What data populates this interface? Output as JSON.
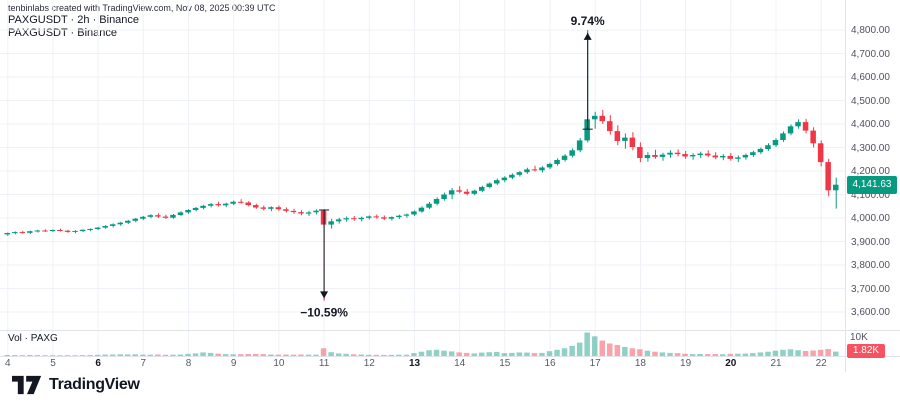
{
  "header": {
    "attribution": "tenbinlabs created with TradingView.com, Nov 08, 2025 00:39 UTC",
    "legend_line1": "PAXGUSDT · 2h · Binance",
    "legend_line2": "PAXGUSDT · Binance"
  },
  "price_axis": {
    "labels": [
      {
        "label": "4,800.00",
        "value": 4800
      },
      {
        "label": "4,700.00",
        "value": 4700
      },
      {
        "label": "4,600.00",
        "value": 4600
      },
      {
        "label": "4,500.00",
        "value": 4500
      },
      {
        "label": "4,400.00",
        "value": 4400
      },
      {
        "label": "4,300.00",
        "value": 4300
      },
      {
        "label": "4,200.00",
        "value": 4200
      },
      {
        "label": "4,100.00",
        "value": 4100
      },
      {
        "label": "4,000.00",
        "value": 4000
      },
      {
        "label": "3,900.00",
        "value": 3900
      },
      {
        "label": "3,800.00",
        "value": 3800
      },
      {
        "label": "3,700.00",
        "value": 3700
      },
      {
        "label": "3,600.00",
        "value": 3600
      }
    ],
    "last_price_label": "4,141.63",
    "last_price_value": 4141.63
  },
  "volume": {
    "legend": "Vol · PAXG",
    "axis_max_label": "10K",
    "last_volume_label": "1.82K"
  },
  "footer": {
    "logo_text": "TradingView"
  },
  "chart_data": {
    "type": "candlestick",
    "symbol": "PAXGUSDT",
    "interval": "2h",
    "exchange": "Binance",
    "price_range": {
      "min": 3600,
      "max": 4800,
      "step": 100
    },
    "volume_axis_max": 10000,
    "last_price": 4141.63,
    "last_volume": 1820,
    "candles_per_day": 6,
    "candle_format": [
      "open",
      "high",
      "low",
      "close",
      "volume"
    ],
    "day_ticks": [
      {
        "label": "4",
        "bold": false
      },
      {
        "label": "5",
        "bold": false
      },
      {
        "label": "6",
        "bold": true
      },
      {
        "label": "7",
        "bold": false
      },
      {
        "label": "8",
        "bold": false
      },
      {
        "label": "9",
        "bold": false
      },
      {
        "label": "10",
        "bold": false
      },
      {
        "label": "11",
        "bold": false
      },
      {
        "label": "12",
        "bold": false
      },
      {
        "label": "13",
        "bold": true
      },
      {
        "label": "14",
        "bold": false
      },
      {
        "label": "15",
        "bold": false
      },
      {
        "label": "16",
        "bold": false
      },
      {
        "label": "17",
        "bold": false
      },
      {
        "label": "18",
        "bold": false
      },
      {
        "label": "19",
        "bold": false
      },
      {
        "label": "20",
        "bold": true
      },
      {
        "label": "21",
        "bold": false
      },
      {
        "label": "22",
        "bold": false
      }
    ],
    "annotations": [
      {
        "label": "9.74%",
        "candle_index": 77,
        "price_from": 4378,
        "price_to": 4788,
        "direction": "up"
      },
      {
        "label": "−10.59%",
        "candle_index": 42,
        "price_from": 4034,
        "price_to": 3658,
        "direction": "down"
      }
    ],
    "colors": {
      "up": "#089981",
      "down": "#f23645",
      "vol_up": "rgba(8,153,129,0.45)",
      "vol_down": "rgba(242,54,69,0.45)",
      "grid": "#eef1f6",
      "annotation": "#131722",
      "price_badge": "#089981",
      "volume_badge": "#f7525f"
    },
    "candles": [
      [
        3930,
        3938,
        3924,
        3936,
        420
      ],
      [
        3936,
        3943,
        3930,
        3940,
        380
      ],
      [
        3940,
        3945,
        3933,
        3937,
        350
      ],
      [
        3937,
        3946,
        3932,
        3944,
        400
      ],
      [
        3944,
        3950,
        3938,
        3947,
        360
      ],
      [
        3947,
        3952,
        3941,
        3945,
        300
      ],
      [
        3945,
        3951,
        3940,
        3949,
        320
      ],
      [
        3949,
        3954,
        3943,
        3946,
        280
      ],
      [
        3946,
        3950,
        3937,
        3941,
        340
      ],
      [
        3941,
        3948,
        3935,
        3945,
        310
      ],
      [
        3945,
        3952,
        3940,
        3950,
        330
      ],
      [
        3950,
        3956,
        3944,
        3953,
        360
      ],
      [
        3953,
        3962,
        3948,
        3959,
        520
      ],
      [
        3959,
        3970,
        3954,
        3966,
        580
      ],
      [
        3966,
        3977,
        3960,
        3973,
        640
      ],
      [
        3973,
        3984,
        3967,
        3980,
        700
      ],
      [
        3980,
        3992,
        3974,
        3988,
        660
      ],
      [
        3988,
        4000,
        3982,
        3997,
        720
      ],
      [
        3997,
        4009,
        3991,
        4005,
        600
      ],
      [
        4005,
        4016,
        3999,
        4012,
        560
      ],
      [
        4012,
        4020,
        4000,
        4006,
        640
      ],
      [
        4006,
        4014,
        3996,
        4001,
        500
      ],
      [
        4001,
        4017,
        3997,
        4013,
        540
      ],
      [
        4013,
        4029,
        4008,
        4024,
        620
      ],
      [
        4024,
        4038,
        4018,
        4034,
        900
      ],
      [
        4034,
        4047,
        4028,
        4043,
        1100
      ],
      [
        4043,
        4056,
        4037,
        4052,
        1500
      ],
      [
        4052,
        4064,
        4045,
        4059,
        1300
      ],
      [
        4059,
        4070,
        4049,
        4054,
        1000
      ],
      [
        4054,
        4065,
        4046,
        4061,
        800
      ],
      [
        4061,
        4074,
        4055,
        4069,
        700
      ],
      [
        4069,
        4080,
        4061,
        4066,
        760
      ],
      [
        4066,
        4072,
        4049,
        4055,
        820
      ],
      [
        4055,
        4061,
        4039,
        4045,
        880
      ],
      [
        4045,
        4053,
        4032,
        4039,
        800
      ],
      [
        4039,
        4050,
        4029,
        4046,
        640
      ],
      [
        4046,
        4053,
        4031,
        4037,
        600
      ],
      [
        4037,
        4045,
        4024,
        4030,
        640
      ],
      [
        4030,
        4039,
        4018,
        4025,
        560
      ],
      [
        4025,
        4033,
        4012,
        4019,
        620
      ],
      [
        4019,
        4030,
        4009,
        4024,
        580
      ],
      [
        4024,
        4037,
        4015,
        4031,
        540
      ],
      [
        4031,
        4038,
        3648,
        3972,
        3200
      ],
      [
        3972,
        3996,
        3955,
        3986,
        1600
      ],
      [
        3986,
        4001,
        3976,
        3994,
        1100
      ],
      [
        3994,
        4007,
        3984,
        3999,
        900
      ],
      [
        3999,
        4009,
        3988,
        3995,
        700
      ],
      [
        3995,
        4006,
        3985,
        4001,
        620
      ],
      [
        4001,
        4011,
        3993,
        4007,
        520
      ],
      [
        4007,
        4015,
        3997,
        4003,
        480
      ],
      [
        4003,
        4011,
        3991,
        3997,
        460
      ],
      [
        3997,
        4007,
        3989,
        4004,
        500
      ],
      [
        4004,
        4014,
        3996,
        4010,
        540
      ],
      [
        4010,
        4019,
        4001,
        4015,
        560
      ],
      [
        4015,
        4032,
        4009,
        4028,
        1200
      ],
      [
        4028,
        4050,
        4022,
        4044,
        1800
      ],
      [
        4044,
        4068,
        4038,
        4061,
        2400
      ],
      [
        4061,
        4088,
        4054,
        4081,
        2600
      ],
      [
        4081,
        4108,
        4074,
        4100,
        2200
      ],
      [
        4100,
        4128,
        4080,
        4118,
        1900
      ],
      [
        4118,
        4135,
        4105,
        4112,
        1500
      ],
      [
        4112,
        4124,
        4096,
        4103,
        1300
      ],
      [
        4103,
        4121,
        4097,
        4116,
        1100
      ],
      [
        4116,
        4138,
        4110,
        4132,
        1400
      ],
      [
        4132,
        4152,
        4126,
        4147,
        1600
      ],
      [
        4147,
        4168,
        4140,
        4161,
        1700
      ],
      [
        4161,
        4178,
        4152,
        4172,
        1200
      ],
      [
        4172,
        4190,
        4165,
        4184,
        1300
      ],
      [
        4184,
        4200,
        4176,
        4195,
        1500
      ],
      [
        4195,
        4214,
        4188,
        4207,
        1400
      ],
      [
        4207,
        4222,
        4198,
        4203,
        1200
      ],
      [
        4203,
        4220,
        4194,
        4215,
        1300
      ],
      [
        4215,
        4236,
        4208,
        4230,
        2000
      ],
      [
        4230,
        4254,
        4222,
        4247,
        2600
      ],
      [
        4247,
        4272,
        4240,
        4265,
        3200
      ],
      [
        4265,
        4296,
        4258,
        4288,
        4200
      ],
      [
        4288,
        4340,
        4280,
        4330,
        5600
      ],
      [
        4330,
        4800,
        4322,
        4420,
        9800
      ],
      [
        4420,
        4452,
        4380,
        4435,
        8200
      ],
      [
        4435,
        4460,
        4400,
        4412,
        6400
      ],
      [
        4412,
        4438,
        4355,
        4370,
        5200
      ],
      [
        4370,
        4395,
        4310,
        4328,
        4600
      ],
      [
        4328,
        4360,
        4295,
        4342,
        3800
      ],
      [
        4342,
        4365,
        4288,
        4302,
        3200
      ],
      [
        4302,
        4322,
        4238,
        4255,
        2800
      ],
      [
        4255,
        4280,
        4240,
        4268,
        2200
      ],
      [
        4268,
        4290,
        4252,
        4260,
        1800
      ],
      [
        4260,
        4278,
        4244,
        4270,
        1500
      ],
      [
        4270,
        4288,
        4256,
        4278,
        1300
      ],
      [
        4278,
        4292,
        4262,
        4272,
        1200
      ],
      [
        4272,
        4285,
        4252,
        4262,
        900
      ],
      [
        4262,
        4276,
        4248,
        4268,
        800
      ],
      [
        4268,
        4282,
        4255,
        4274,
        850
      ],
      [
        4274,
        4288,
        4260,
        4266,
        780
      ],
      [
        4266,
        4280,
        4250,
        4258,
        820
      ],
      [
        4258,
        4272,
        4246,
        4264,
        760
      ],
      [
        4264,
        4276,
        4244,
        4252,
        900
      ],
      [
        4252,
        4266,
        4238,
        4258,
        950
      ],
      [
        4258,
        4274,
        4248,
        4268,
        1000
      ],
      [
        4268,
        4286,
        4260,
        4280,
        1200
      ],
      [
        4280,
        4300,
        4272,
        4294,
        1500
      ],
      [
        4294,
        4318,
        4286,
        4310,
        1800
      ],
      [
        4310,
        4340,
        4302,
        4332,
        2200
      ],
      [
        4332,
        4368,
        4324,
        4360,
        2600
      ],
      [
        4360,
        4398,
        4352,
        4390,
        2800
      ],
      [
        4390,
        4420,
        4380,
        4408,
        2400
      ],
      [
        4408,
        4422,
        4360,
        4372,
        2100
      ],
      [
        4372,
        4386,
        4300,
        4318,
        2300
      ],
      [
        4318,
        4330,
        4220,
        4238,
        2600
      ],
      [
        4238,
        4252,
        4092,
        4118,
        2900
      ],
      [
        4118,
        4172,
        4040,
        4141.63,
        1820
      ]
    ]
  }
}
